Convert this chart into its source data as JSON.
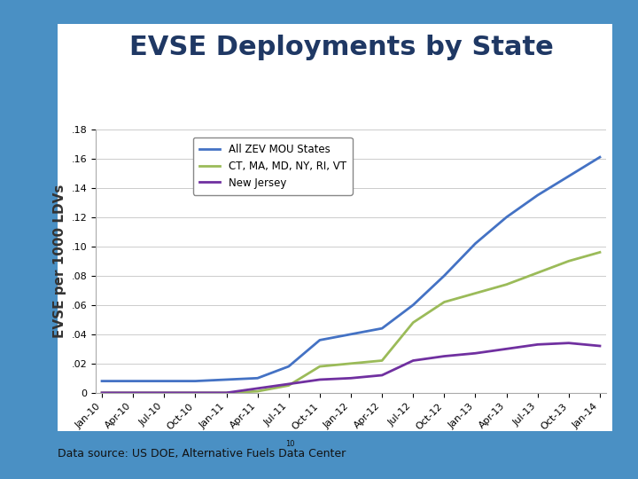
{
  "title": "EVSE Deployments by State",
  "ylabel": "EVSE per 1000 LDVs",
  "source": "Data source: US DOE, Alternative Fuels Data Center",
  "title_fontsize": 22,
  "title_color": "#1F3864",
  "ylabel_fontsize": 11,
  "background_color": "#FFFFFF",
  "outer_background": "#4A90C4",
  "panel_color": "#FFFFFF",
  "ylim": [
    0,
    0.18
  ],
  "yticks": [
    0,
    0.02,
    0.04,
    0.06,
    0.08,
    0.1,
    0.12,
    0.14,
    0.16,
    0.18
  ],
  "x_labels": [
    "Jan-10",
    "Apr-10",
    "Jul-10",
    "Oct-10",
    "Jan-11",
    "Apr-11",
    "Jul-11",
    "Oct-11",
    "Jan-12",
    "Apr-12",
    "Jul-12",
    "Oct-12",
    "Jan-13",
    "Apr-13",
    "Jul-13",
    "Oct-13",
    "Jan-14"
  ],
  "series": [
    {
      "label": "All ZEV MOU States",
      "color": "#4472C4",
      "linewidth": 2.0,
      "values": [
        0.008,
        0.008,
        0.008,
        0.008,
        0.009,
        0.01,
        0.018,
        0.036,
        0.04,
        0.044,
        0.06,
        0.08,
        0.102,
        0.12,
        0.135,
        0.148,
        0.161
      ]
    },
    {
      "label": "CT, MA, MD, NY, RI, VT",
      "color": "#9BBB59",
      "linewidth": 2.0,
      "values": [
        0.0,
        0.0,
        0.0,
        0.0,
        0.0,
        0.001,
        0.005,
        0.018,
        0.02,
        0.022,
        0.048,
        0.062,
        0.068,
        0.074,
        0.082,
        0.09,
        0.096
      ]
    },
    {
      "label": "New Jersey",
      "color": "#7030A0",
      "linewidth": 2.0,
      "values": [
        0.0,
        0.0,
        0.0,
        0.0,
        0.0,
        0.003,
        0.006,
        0.009,
        0.01,
        0.012,
        0.022,
        0.025,
        0.027,
        0.03,
        0.033,
        0.034,
        0.032
      ]
    }
  ]
}
